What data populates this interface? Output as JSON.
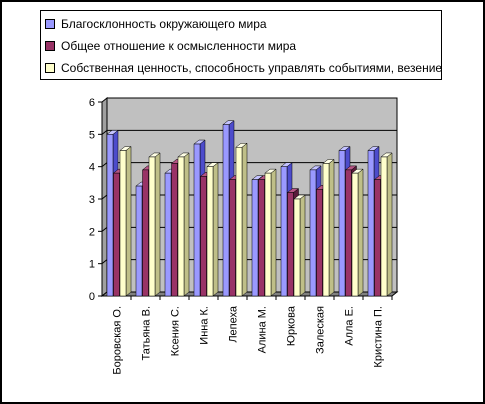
{
  "chart_data": {
    "type": "bar",
    "categories": [
      "Боровская О.",
      "Татьяна В.",
      "Ксения С.",
      "Инна К.",
      "Лепеха",
      "Алина М.",
      "Юркова",
      "Залеская",
      "Алла Е.",
      "Кристина П."
    ],
    "series": [
      {
        "name": "Благосклонность окружающего мира",
        "values": [
          5.0,
          3.4,
          3.8,
          4.7,
          5.3,
          3.6,
          4.0,
          3.9,
          4.5,
          4.5
        ]
      },
      {
        "name": "Общее отношение к осмысленности мира",
        "values": [
          3.8,
          3.9,
          4.1,
          3.7,
          3.6,
          3.6,
          3.2,
          3.3,
          3.9,
          3.6
        ]
      },
      {
        "name": "Собственная ценность, способность управлять событиями, везение",
        "values": [
          4.5,
          4.3,
          4.3,
          4.0,
          4.6,
          3.8,
          3.0,
          4.1,
          3.8,
          4.3
        ]
      }
    ],
    "ylim": [
      0,
      6
    ],
    "yticks": [
      0,
      1,
      2,
      3,
      4,
      5,
      6
    ],
    "grid": true,
    "legend_position": "top",
    "colors": {
      "series": [
        "#9a99ff",
        "#993366",
        "#ffffcc"
      ],
      "series_side": [
        "#4d4ccc",
        "#5a1a3a",
        "#bfbf88"
      ],
      "series_top": [
        "#c4c3ff",
        "#b65584",
        "#ffffe6"
      ],
      "wall": "#c0c0c0",
      "floor": "#808080"
    }
  }
}
